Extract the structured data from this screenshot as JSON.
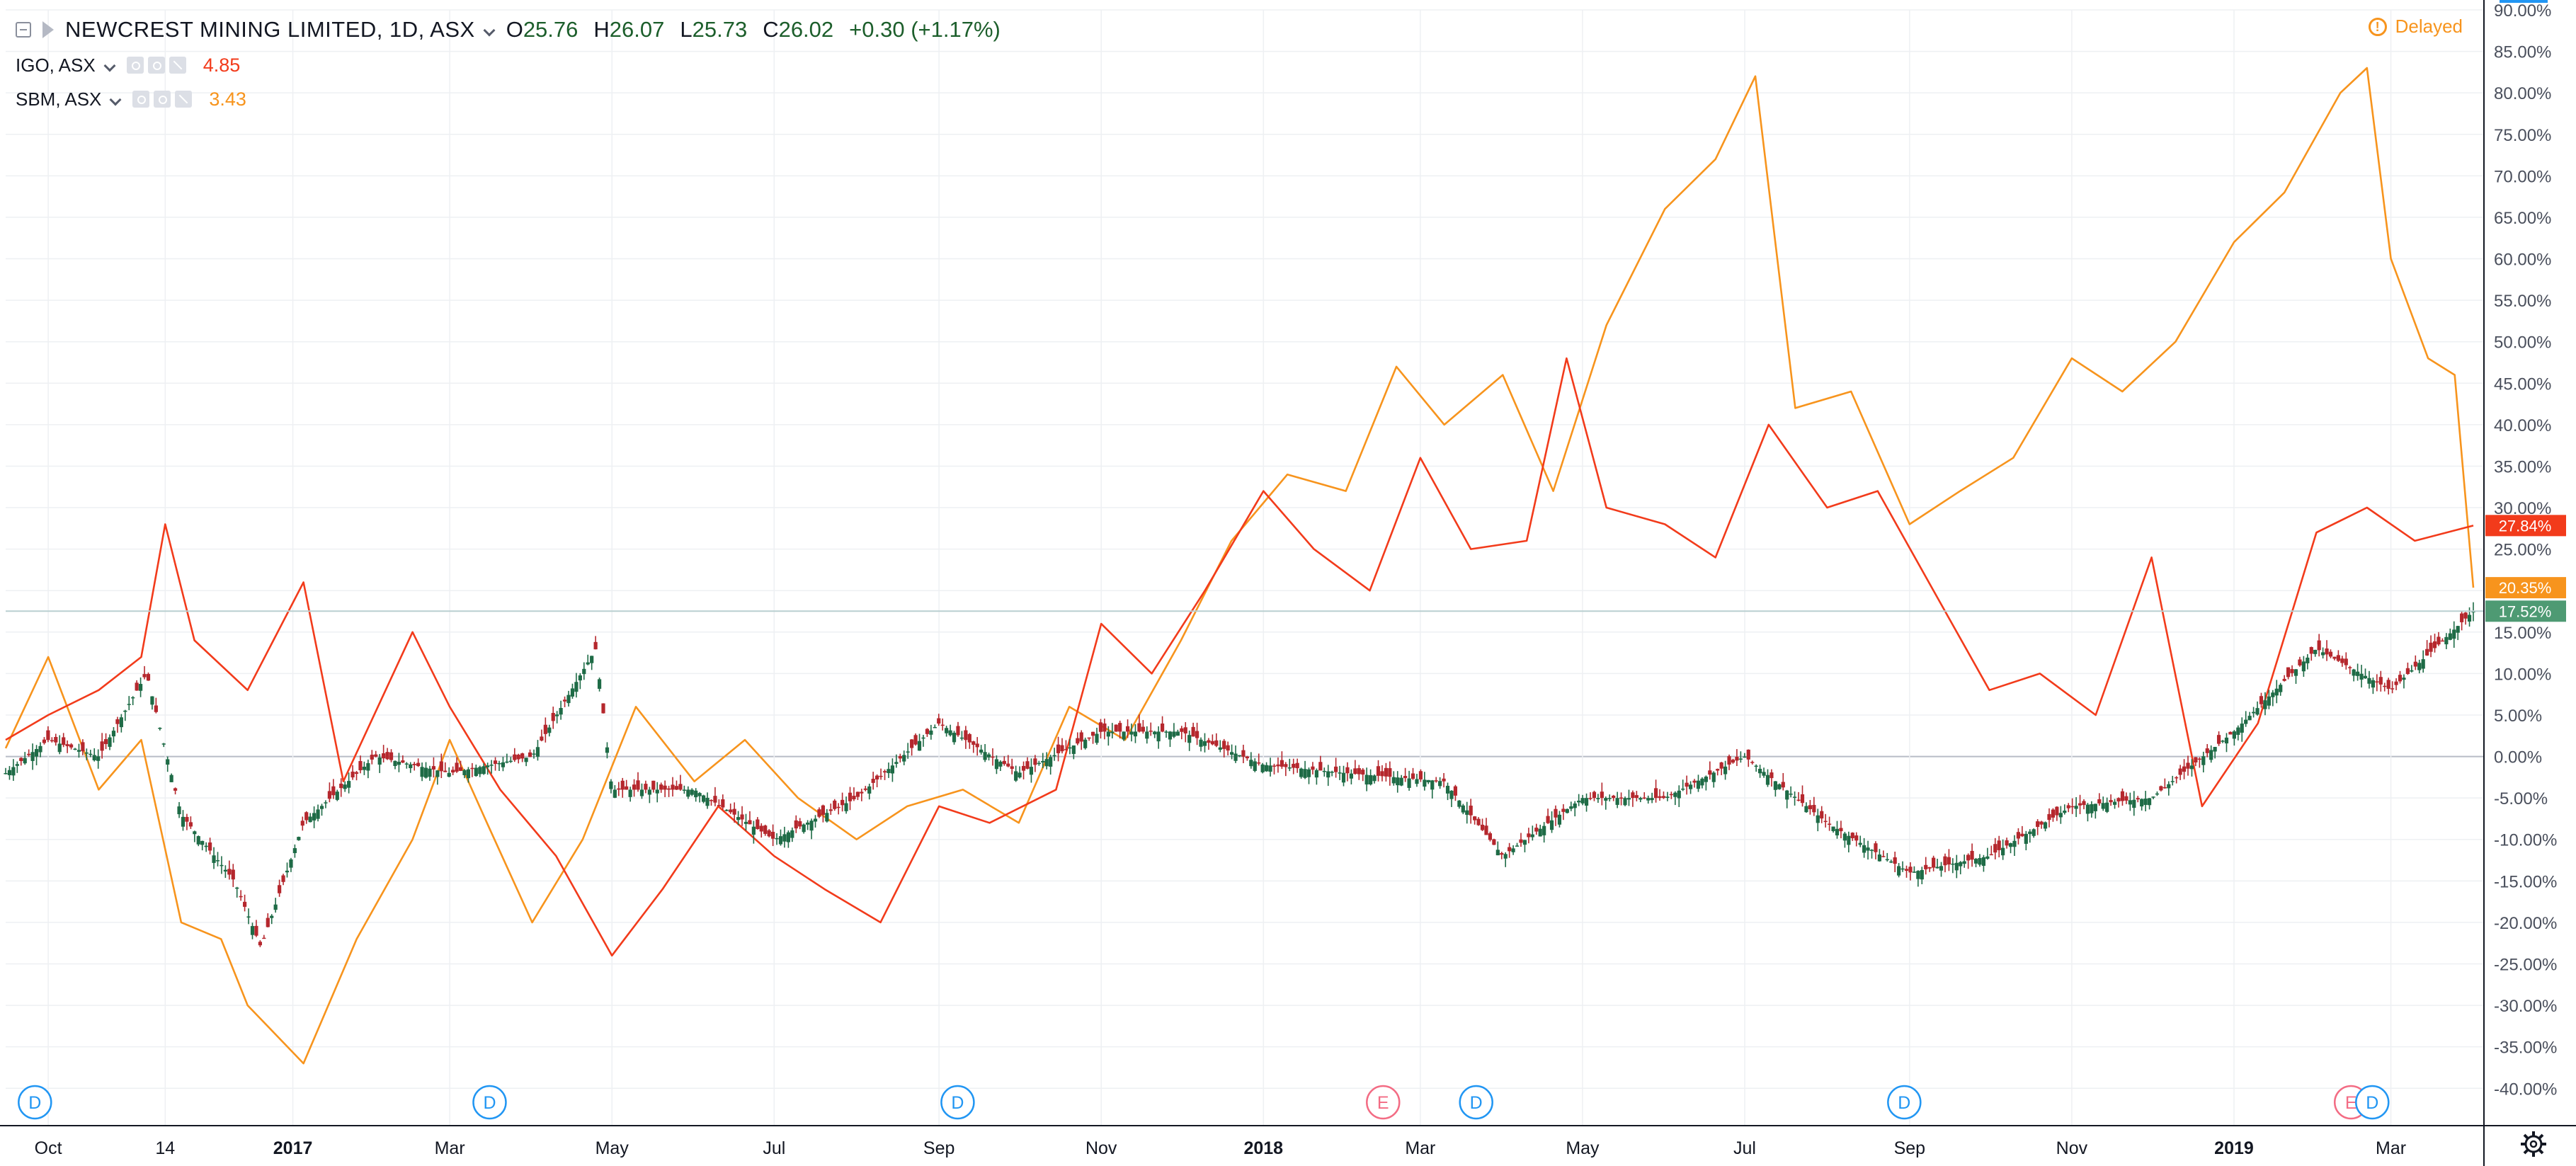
{
  "header": {
    "symbol": "NEWCREST MINING LIMITED, 1D, ASX",
    "open_label": "O",
    "open": "25.76",
    "high_label": "H",
    "high": "26.07",
    "low_label": "L",
    "low": "25.73",
    "close_label": "C",
    "close": "26.02",
    "change": "+0.30 (+1.17%)",
    "delayed": "Delayed"
  },
  "comparisons": [
    {
      "symbol": "IGO, ASX",
      "value": "4.85",
      "color": "#f23b1b"
    },
    {
      "symbol": "SBM, ASX",
      "value": "3.43",
      "color": "#f7941d"
    }
  ],
  "colors": {
    "up": "#1e6b46",
    "down": "#b5272d",
    "igo": "#f23b1b",
    "sbm": "#f7941d",
    "grid": "#eef0f3",
    "axis_text": "#4a4f5c",
    "zero_line": "#b8bcc6",
    "price_line": "#b9cfd0",
    "ncm_label_bg": "#4e9a73",
    "event_dividend": "#2196f3",
    "event_earnings": "#f36c84"
  },
  "chart_data": {
    "type": "line",
    "title": "NEWCREST MINING LIMITED, 1D, ASX",
    "xlabel": "",
    "ylabel": "",
    "y_unit": "%",
    "ylim": [
      -44.5,
      90
    ],
    "x_range": [
      "2016-09-15",
      "2019-04-05"
    ],
    "grid": true,
    "legend": "top-left",
    "x_ticks": [
      {
        "date": "2016-10-01",
        "label": "Oct"
      },
      {
        "date": "2016-11-14",
        "label": "14"
      },
      {
        "date": "2017-01-01",
        "label": "2017"
      },
      {
        "date": "2017-03-01",
        "label": "Mar"
      },
      {
        "date": "2017-05-01",
        "label": "May"
      },
      {
        "date": "2017-07-01",
        "label": "Jul"
      },
      {
        "date": "2017-09-01",
        "label": "Sep"
      },
      {
        "date": "2017-11-01",
        "label": "Nov"
      },
      {
        "date": "2018-01-01",
        "label": "2018"
      },
      {
        "date": "2018-03-01",
        "label": "Mar"
      },
      {
        "date": "2018-05-01",
        "label": "May"
      },
      {
        "date": "2018-07-01",
        "label": "Jul"
      },
      {
        "date": "2018-09-01",
        "label": "Sep"
      },
      {
        "date": "2018-11-01",
        "label": "Nov"
      },
      {
        "date": "2019-01-01",
        "label": "2019"
      },
      {
        "date": "2019-03-01",
        "label": "Mar"
      }
    ],
    "y_ticks": [
      "90.00%",
      "85.00%",
      "80.00%",
      "75.00%",
      "70.00%",
      "65.00%",
      "60.00%",
      "55.00%",
      "50.00%",
      "45.00%",
      "40.00%",
      "35.00%",
      "30.00%",
      "25.00%",
      "20.00%",
      "15.00%",
      "10.00%",
      "5.00%",
      "0.00%",
      "-5.00%",
      "-10.00%",
      "-15.00%",
      "-20.00%",
      "-25.00%",
      "-30.00%",
      "-35.00%",
      "-40.00%"
    ],
    "series": [
      {
        "name": "NEWCREST MINING LIMITED",
        "style": "candles",
        "color": "#1e6b46",
        "last_label": "17.52%",
        "last": 17.52,
        "x": [
          "2016-09-15",
          "2016-10-01",
          "2016-10-20",
          "2016-11-07",
          "2016-11-20",
          "2016-12-10",
          "2016-12-20",
          "2017-01-05",
          "2017-02-01",
          "2017-03-01",
          "2017-04-01",
          "2017-04-25",
          "2017-05-01",
          "2017-06-01",
          "2017-07-01",
          "2017-08-01",
          "2017-09-01",
          "2017-10-01",
          "2017-11-01",
          "2017-12-01",
          "2018-01-01",
          "2018-02-01",
          "2018-03-10",
          "2018-04-01",
          "2018-05-01",
          "2018-06-01",
          "2018-07-01",
          "2018-08-01",
          "2018-09-01",
          "2018-10-01",
          "2018-11-01",
          "2018-12-01",
          "2019-01-01",
          "2019-02-01",
          "2019-03-01",
          "2019-04-01"
        ],
        "values": [
          -2,
          2,
          0,
          10,
          -7,
          -15,
          -23,
          -8,
          0,
          -2,
          0,
          13,
          -4,
          -4,
          -10,
          -5,
          4,
          -2,
          3,
          3,
          -1,
          -2,
          -3,
          -12,
          -5,
          -5,
          0,
          -8,
          -14,
          -12,
          -6,
          -5,
          3,
          13,
          8,
          17.52
        ]
      },
      {
        "name": "IGO, ASX",
        "style": "line",
        "color": "#f23b1b",
        "last_label": "27.84%",
        "last": 27.84,
        "x": [
          "2016-09-15",
          "2016-10-01",
          "2016-10-20",
          "2016-11-05",
          "2016-11-14",
          "2016-11-25",
          "2016-12-15",
          "2017-01-05",
          "2017-01-20",
          "2017-02-15",
          "2017-03-01",
          "2017-03-20",
          "2017-04-10",
          "2017-05-01",
          "2017-05-20",
          "2017-06-10",
          "2017-07-01",
          "2017-07-20",
          "2017-08-10",
          "2017-09-01",
          "2017-09-20",
          "2017-10-15",
          "2017-11-01",
          "2017-11-20",
          "2017-12-10",
          "2018-01-01",
          "2018-01-20",
          "2018-02-10",
          "2018-03-01",
          "2018-03-20",
          "2018-04-10",
          "2018-04-25",
          "2018-05-10",
          "2018-06-01",
          "2018-06-20",
          "2018-07-10",
          "2018-08-01",
          "2018-08-20",
          "2018-09-10",
          "2018-10-01",
          "2018-10-20",
          "2018-11-10",
          "2018-12-01",
          "2018-12-20",
          "2019-01-10",
          "2019-02-01",
          "2019-02-20",
          "2019-03-10",
          "2019-04-01"
        ],
        "values": [
          2,
          5,
          8,
          12,
          28,
          14,
          8,
          21,
          -3,
          15,
          6,
          -4,
          -12,
          -24,
          -16,
          -6,
          -12,
          -16,
          -20,
          -6,
          -8,
          -4,
          16,
          10,
          20,
          32,
          25,
          20,
          36,
          25,
          26,
          48,
          30,
          28,
          24,
          40,
          30,
          32,
          20,
          8,
          10,
          5,
          24,
          -6,
          4,
          27,
          30,
          26,
          27.84
        ]
      },
      {
        "name": "SBM, ASX",
        "style": "line",
        "color": "#f7941d",
        "last_label": "20.35%",
        "last": 20.35,
        "x": [
          "2016-09-15",
          "2016-10-01",
          "2016-10-20",
          "2016-11-05",
          "2016-11-20",
          "2016-12-05",
          "2016-12-15",
          "2017-01-05",
          "2017-01-25",
          "2017-02-15",
          "2017-03-01",
          "2017-03-15",
          "2017-04-01",
          "2017-04-20",
          "2017-05-10",
          "2017-06-01",
          "2017-06-20",
          "2017-07-10",
          "2017-08-01",
          "2017-08-20",
          "2017-09-10",
          "2017-10-01",
          "2017-10-20",
          "2017-11-10",
          "2017-12-01",
          "2017-12-20",
          "2018-01-10",
          "2018-02-01",
          "2018-02-20",
          "2018-03-10",
          "2018-04-01",
          "2018-04-20",
          "2018-05-10",
          "2018-06-01",
          "2018-06-20",
          "2018-07-05",
          "2018-07-20",
          "2018-08-10",
          "2018-09-01",
          "2018-09-20",
          "2018-10-10",
          "2018-11-01",
          "2018-11-20",
          "2018-12-10",
          "2019-01-01",
          "2019-01-20",
          "2019-02-10",
          "2019-02-20",
          "2019-03-01",
          "2019-03-15",
          "2019-03-25",
          "2019-04-01"
        ],
        "values": [
          1,
          12,
          -4,
          2,
          -20,
          -22,
          -30,
          -37,
          -22,
          -10,
          2,
          -8,
          -20,
          -10,
          6,
          -3,
          2,
          -5,
          -10,
          -6,
          -4,
          -8,
          6,
          2,
          14,
          26,
          34,
          32,
          47,
          40,
          46,
          32,
          52,
          66,
          72,
          82,
          42,
          44,
          28,
          32,
          36,
          48,
          44,
          50,
          62,
          68,
          80,
          83,
          60,
          48,
          46,
          20.35
        ]
      }
    ],
    "events": [
      {
        "type": "D",
        "date": "2016-09-26"
      },
      {
        "type": "D",
        "date": "2017-03-16"
      },
      {
        "type": "D",
        "date": "2017-09-08"
      },
      {
        "type": "E",
        "date": "2018-02-15"
      },
      {
        "type": "D",
        "date": "2018-03-22"
      },
      {
        "type": "D",
        "date": "2018-08-30"
      },
      {
        "type": "E",
        "date": "2019-02-14"
      },
      {
        "type": "D",
        "date": "2019-02-22"
      }
    ]
  }
}
